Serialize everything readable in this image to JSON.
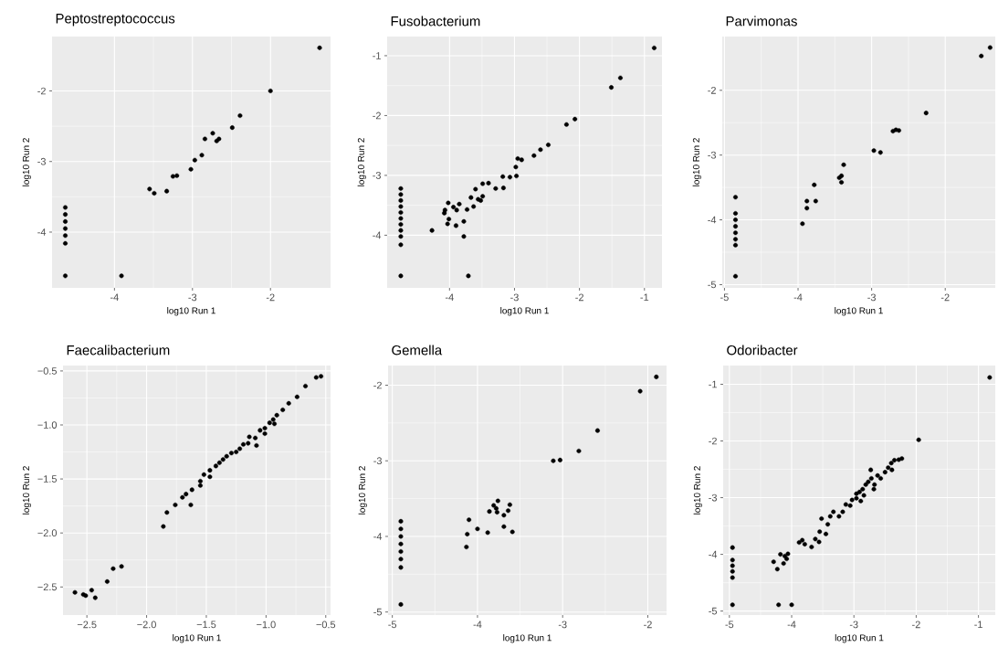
{
  "chart_data": [
    {
      "type": "scatter",
      "title": "Peptostreptococcus",
      "xlabel": "log10 Run 1",
      "ylabel": "log10 Run 2",
      "color": "#000000",
      "marker": "circle",
      "grid": true,
      "xlim": [
        -4.8,
        -1.23
      ],
      "ylim": [
        -4.79,
        -1.23
      ],
      "xticks": [
        -4,
        -3,
        -2
      ],
      "yticks": [
        -4,
        -3,
        -2
      ],
      "x": [
        -1.37,
        -2.0,
        -2.39,
        -2.49,
        -2.74,
        -2.84,
        -2.66,
        -2.69,
        -2.88,
        -2.97,
        -3.02,
        -3.2,
        -3.25,
        -3.33,
        -3.55,
        -3.49,
        -3.91,
        -4.63,
        -4.63,
        -4.63,
        -4.63,
        -4.63,
        -4.63,
        -4.63
      ],
      "values": [
        -1.39,
        -2.0,
        -2.35,
        -2.52,
        -2.6,
        -2.68,
        -2.68,
        -2.71,
        -2.91,
        -2.98,
        -3.11,
        -3.2,
        -3.21,
        -3.42,
        -3.39,
        -3.45,
        -4.62,
        -4.62,
        -3.65,
        -3.75,
        -3.85,
        -3.95,
        -4.05,
        -4.16
      ]
    },
    {
      "type": "scatter",
      "title": "Fusobacterium",
      "xlabel": "log10 Run 1",
      "ylabel": "log10 Run 2",
      "color": "#000000",
      "marker": "circle",
      "grid": true,
      "xlim": [
        -4.96,
        -0.73
      ],
      "ylim": [
        -4.88,
        -0.68
      ],
      "xticks": [
        -4,
        -3,
        -2,
        -1
      ],
      "yticks": [
        -4,
        -3,
        -2,
        -1
      ],
      "x": [
        -0.85,
        -1.37,
        -1.51,
        -2.07,
        -2.2,
        -2.48,
        -2.6,
        -2.7,
        -2.89,
        -2.95,
        -2.98,
        -2.97,
        -3.07,
        -3.18,
        -3.17,
        -3.29,
        -3.4,
        -3.49,
        -3.49,
        -3.52,
        -3.56,
        -3.6,
        -3.67,
        -3.63,
        -3.73,
        -3.85,
        -3.89,
        -3.94,
        -4.02,
        -4.07,
        -4.08,
        -4.01,
        -4.03,
        -3.9,
        -3.78,
        -3.78,
        -4.27,
        -3.71,
        -4.75,
        -4.75,
        -4.75,
        -4.75,
        -4.75,
        -4.75,
        -4.75,
        -4.75,
        -4.75,
        -4.75,
        -4.75
      ],
      "values": [
        -0.87,
        -1.37,
        -1.53,
        -2.06,
        -2.15,
        -2.49,
        -2.57,
        -2.67,
        -2.74,
        -2.72,
        -2.86,
        -3.01,
        -3.03,
        -3.02,
        -3.21,
        -3.22,
        -3.13,
        -3.14,
        -3.35,
        -3.42,
        -3.4,
        -3.23,
        -3.37,
        -3.52,
        -3.57,
        -3.48,
        -3.58,
        -3.53,
        -3.46,
        -3.58,
        -3.63,
        -3.73,
        -3.81,
        -3.84,
        -3.77,
        -4.02,
        -3.92,
        -4.68,
        -4.68,
        -3.22,
        -3.32,
        -3.42,
        -3.52,
        -3.62,
        -3.72,
        -3.82,
        -3.92,
        -4.02,
        -4.16
      ]
    },
    {
      "type": "scatter",
      "title": "Parvimonas",
      "xlabel": "log10 Run 1",
      "ylabel": "log10 Run 2",
      "color": "#000000",
      "marker": "circle",
      "grid": true,
      "xlim": [
        -5.03,
        -1.32
      ],
      "ylim": [
        -5.05,
        -1.17
      ],
      "xticks": [
        -5,
        -4,
        -3,
        -2
      ],
      "yticks": [
        -5,
        -4,
        -3,
        -2
      ],
      "x": [
        -1.39,
        -1.51,
        -2.26,
        -2.67,
        -2.63,
        -2.71,
        -2.88,
        -2.97,
        -3.38,
        -3.41,
        -3.44,
        -3.41,
        -3.78,
        -3.76,
        -3.88,
        -3.88,
        -3.94,
        -4.85,
        -4.85,
        -4.85,
        -4.85,
        -4.85,
        -4.85,
        -4.85,
        -4.85
      ],
      "values": [
        -1.34,
        -1.47,
        -2.35,
        -2.61,
        -2.62,
        -2.63,
        -2.96,
        -2.93,
        -3.15,
        -3.32,
        -3.35,
        -3.42,
        -3.46,
        -3.71,
        -3.71,
        -3.82,
        -4.06,
        -4.87,
        -3.65,
        -3.9,
        -4.0,
        -4.1,
        -4.2,
        -4.3,
        -4.39
      ]
    },
    {
      "type": "scatter",
      "title": "Faecalibacterium",
      "xlabel": "log10 Run 1",
      "ylabel": "log10 Run 2",
      "color": "#000000",
      "marker": "circle",
      "grid": true,
      "xlim": [
        -2.7,
        -0.46
      ],
      "ylim": [
        -2.76,
        -0.45
      ],
      "xticks": [
        {
          "value": -2.5,
          "label": "−2.5"
        },
        {
          "value": -2.0,
          "label": "−2.0"
        },
        {
          "value": -1.5,
          "label": "−1.5"
        },
        {
          "value": -1.0,
          "label": "−1.0"
        },
        {
          "value": -0.5,
          "label": "−0.5"
        }
      ],
      "yticks": [
        {
          "value": -2.5,
          "label": "−2.5"
        },
        {
          "value": -2.0,
          "label": "−2.0"
        },
        {
          "value": -1.5,
          "label": "−1.5"
        },
        {
          "value": -1.0,
          "label": "−1.0"
        },
        {
          "value": -0.5,
          "label": "−0.5"
        }
      ],
      "x": [
        -0.54,
        -0.58,
        -0.67,
        -0.74,
        -0.81,
        -0.86,
        -0.91,
        -0.94,
        -0.97,
        -1.01,
        -1.05,
        -0.93,
        -1.01,
        -1.09,
        -1.14,
        -1.15,
        -1.08,
        -1.19,
        -1.22,
        -1.25,
        -1.29,
        -1.33,
        -1.36,
        -1.39,
        -1.42,
        -1.47,
        -1.52,
        -1.47,
        -1.55,
        -1.55,
        -1.62,
        -1.67,
        -1.7,
        -1.63,
        -1.76,
        -1.83,
        -1.86,
        -2.21,
        -2.28,
        -2.33,
        -2.46,
        -2.43,
        -2.6,
        -2.53,
        -2.51
      ],
      "values": [
        -0.55,
        -0.56,
        -0.64,
        -0.74,
        -0.8,
        -0.86,
        -0.91,
        -0.95,
        -0.98,
        -1.03,
        -1.05,
        -0.99,
        -1.08,
        -1.12,
        -1.11,
        -1.17,
        -1.19,
        -1.18,
        -1.22,
        -1.25,
        -1.26,
        -1.29,
        -1.32,
        -1.35,
        -1.38,
        -1.42,
        -1.46,
        -1.48,
        -1.52,
        -1.56,
        -1.6,
        -1.64,
        -1.67,
        -1.74,
        -1.74,
        -1.81,
        -1.94,
        -2.31,
        -2.33,
        -2.45,
        -2.53,
        -2.6,
        -2.55,
        -2.57,
        -2.58
      ]
    },
    {
      "type": "scatter",
      "title": "Gemella",
      "xlabel": "log10 Run 1",
      "ylabel": "log10 Run 2",
      "color": "#000000",
      "marker": "circle",
      "grid": true,
      "xlim": [
        -5.05,
        -1.78
      ],
      "ylim": [
        -5.04,
        -1.74
      ],
      "xticks": [
        -5,
        -4,
        -3,
        -2
      ],
      "yticks": [
        -5,
        -4,
        -3,
        -2
      ],
      "x": [
        -1.9,
        -2.09,
        -2.59,
        -2.81,
        -3.03,
        -3.11,
        -3.76,
        -3.81,
        -3.62,
        -3.78,
        -3.77,
        -3.64,
        -3.86,
        -3.69,
        -3.69,
        -3.59,
        -4.1,
        -4.0,
        -4.12,
        -3.88,
        -4.13,
        -4.9,
        -4.9,
        -4.9,
        -4.9,
        -4.9,
        -4.9,
        -4.9,
        -4.9
      ],
      "values": [
        -1.89,
        -2.08,
        -2.6,
        -2.87,
        -2.99,
        -3.0,
        -3.53,
        -3.59,
        -3.58,
        -3.63,
        -3.68,
        -3.66,
        -3.67,
        -3.72,
        -3.87,
        -3.94,
        -3.78,
        -3.9,
        -3.97,
        -3.95,
        -4.14,
        -4.9,
        -3.8,
        -3.9,
        -4.0,
        -4.1,
        -4.2,
        -4.3,
        -4.41
      ]
    },
    {
      "type": "scatter",
      "title": "Odoribacter",
      "xlabel": "log10 Run 1",
      "ylabel": "log10 Run 2",
      "color": "#000000",
      "marker": "circle",
      "grid": true,
      "xlim": [
        -5.1,
        -0.73
      ],
      "ylim": [
        -5.07,
        -0.67
      ],
      "xticks": [
        -5,
        -4,
        -3,
        -2,
        -1
      ],
      "yticks": [
        -5,
        -4,
        -3,
        -2,
        -1
      ],
      "x": [
        -0.82,
        -1.96,
        -4.95,
        -4.95,
        -4.95,
        -4.95,
        -4.95,
        -4.95,
        -4.21,
        -4.0,
        -4.29,
        -4.23,
        -4.13,
        -4.18,
        -4.11,
        -4.06,
        -4.08,
        -3.88,
        -3.83,
        -3.79,
        -3.68,
        -3.62,
        -3.56,
        -3.55,
        -3.45,
        -3.52,
        -3.42,
        -3.38,
        -3.33,
        -3.24,
        -3.18,
        -3.13,
        -3.06,
        -3.03,
        -2.96,
        -2.89,
        -2.91,
        -2.86,
        -2.81,
        -2.77,
        -2.72,
        -2.73,
        -2.67,
        -2.62,
        -2.57,
        -2.5,
        -2.45,
        -2.4,
        -2.35,
        -2.28,
        -2.23,
        -2.39,
        -2.96,
        -2.84,
        -2.68
      ],
      "values": [
        -0.88,
        -1.98,
        -3.88,
        -4.1,
        -4.2,
        -4.3,
        -4.41,
        -4.89,
        -4.89,
        -4.89,
        -4.13,
        -4.26,
        -4.16,
        -4.0,
        -4.03,
        -3.99,
        -4.08,
        -3.79,
        -3.75,
        -3.82,
        -3.87,
        -3.73,
        -3.78,
        -3.6,
        -3.64,
        -3.37,
        -3.47,
        -3.33,
        -3.25,
        -3.33,
        -3.25,
        -3.12,
        -3.14,
        -3.04,
        -3.01,
        -3.06,
        -2.9,
        -2.85,
        -2.77,
        -2.72,
        -2.66,
        -2.51,
        -2.77,
        -2.61,
        -2.66,
        -2.55,
        -2.47,
        -2.39,
        -2.34,
        -2.33,
        -2.31,
        -2.51,
        -2.93,
        -2.96,
        -2.85
      ]
    }
  ]
}
